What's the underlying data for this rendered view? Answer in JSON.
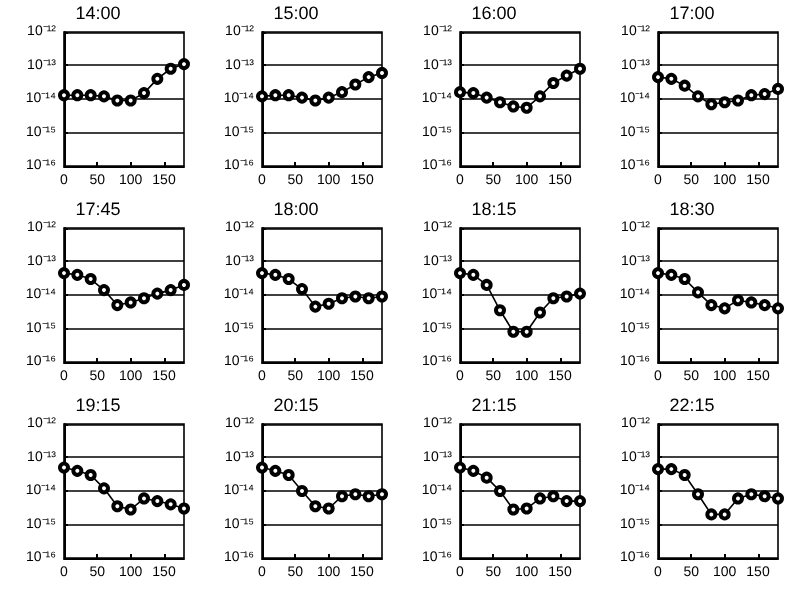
{
  "chart_data": [
    {
      "type": "line",
      "title": "14:00",
      "x": [
        0,
        20,
        40,
        60,
        80,
        100,
        120,
        140,
        160,
        180
      ],
      "series": [
        {
          "color": "#000000",
          "values": [
            1.3e-14,
            1.3e-14,
            1.3e-14,
            1.2e-14,
            9e-15,
            9e-15,
            1.5e-14,
            4e-14,
            8e-14,
            1.1e-13
          ]
        }
      ],
      "xlim": [
        0,
        180
      ],
      "xticks": [
        0,
        50,
        100,
        150
      ],
      "ylim": [
        1e-16,
        1e-12
      ],
      "yticks": [
        {
          "value": 1e-16,
          "label": "10⁻¹⁶"
        },
        {
          "value": 1e-15,
          "label": "10⁻¹⁵"
        },
        {
          "value": 1e-14,
          "label": "10⁻¹⁴"
        },
        {
          "value": 1e-13,
          "label": "10⁻¹³"
        },
        {
          "value": 1e-12,
          "label": "10⁻¹²"
        }
      ],
      "log": "y",
      "grid": "y",
      "marker": "circle"
    },
    {
      "type": "line",
      "title": "15:00",
      "x": [
        0,
        20,
        40,
        60,
        80,
        100,
        120,
        140,
        160,
        180
      ],
      "series": [
        {
          "color": "#000000",
          "values": [
            1.2e-14,
            1.3e-14,
            1.3e-14,
            1.1e-14,
            9e-15,
            1.1e-14,
            1.6e-14,
            2.7e-14,
            4.5e-14,
            6e-14
          ]
        }
      ],
      "xlim": [
        0,
        180
      ],
      "xticks": [
        0,
        50,
        100,
        150
      ],
      "ylim": [
        1e-16,
        1e-12
      ],
      "yticks": [
        {
          "value": 1e-16,
          "label": "10⁻¹⁶"
        },
        {
          "value": 1e-15,
          "label": "10⁻¹⁵"
        },
        {
          "value": 1e-14,
          "label": "10⁻¹⁴"
        },
        {
          "value": 1e-13,
          "label": "10⁻¹³"
        },
        {
          "value": 1e-12,
          "label": "10⁻¹²"
        }
      ],
      "log": "y",
      "grid": "y",
      "marker": "circle"
    },
    {
      "type": "line",
      "title": "16:00",
      "x": [
        0,
        20,
        40,
        60,
        80,
        100,
        120,
        140,
        160,
        180
      ],
      "series": [
        {
          "color": "#000000",
          "values": [
            1.6e-14,
            1.5e-14,
            1.1e-14,
            8e-15,
            6e-15,
            5.5e-15,
            1.2e-14,
            3e-14,
            5e-14,
            8e-14
          ]
        }
      ],
      "xlim": [
        0,
        180
      ],
      "xticks": [
        0,
        50,
        100,
        150
      ],
      "ylim": [
        1e-16,
        1e-12
      ],
      "yticks": [
        {
          "value": 1e-16,
          "label": "10⁻¹⁶"
        },
        {
          "value": 1e-15,
          "label": "10⁻¹⁵"
        },
        {
          "value": 1e-14,
          "label": "10⁻¹⁴"
        },
        {
          "value": 1e-13,
          "label": "10⁻¹³"
        },
        {
          "value": 1e-12,
          "label": "10⁻¹²"
        }
      ],
      "log": "y",
      "grid": "y",
      "marker": "circle"
    },
    {
      "type": "line",
      "title": "17:00",
      "x": [
        0,
        20,
        40,
        60,
        80,
        100,
        120,
        140,
        160,
        180
      ],
      "series": [
        {
          "color": "#000000",
          "values": [
            4.5e-14,
            4e-14,
            2.5e-14,
            1.2e-14,
            7e-15,
            8e-15,
            9e-15,
            1.3e-14,
            1.4e-14,
            2e-14
          ]
        }
      ],
      "xlim": [
        0,
        180
      ],
      "xticks": [
        0,
        50,
        100,
        150
      ],
      "ylim": [
        1e-16,
        1e-12
      ],
      "yticks": [
        {
          "value": 1e-16,
          "label": "10⁻¹⁶"
        },
        {
          "value": 1e-15,
          "label": "10⁻¹⁵"
        },
        {
          "value": 1e-14,
          "label": "10⁻¹⁴"
        },
        {
          "value": 1e-13,
          "label": "10⁻¹³"
        },
        {
          "value": 1e-12,
          "label": "10⁻¹²"
        }
      ],
      "log": "y",
      "grid": "y",
      "marker": "circle"
    },
    {
      "type": "line",
      "title": "17:45",
      "x": [
        0,
        20,
        40,
        60,
        80,
        100,
        120,
        140,
        160,
        180
      ],
      "series": [
        {
          "color": "#000000",
          "values": [
            4.5e-14,
            4e-14,
            3e-14,
            1.4e-14,
            5e-15,
            6e-15,
            8e-15,
            1.1e-14,
            1.4e-14,
            2e-14
          ]
        }
      ],
      "xlim": [
        0,
        180
      ],
      "xticks": [
        0,
        50,
        100,
        150
      ],
      "ylim": [
        1e-16,
        1e-12
      ],
      "yticks": [
        {
          "value": 1e-16,
          "label": "10⁻¹⁶"
        },
        {
          "value": 1e-15,
          "label": "10⁻¹⁵"
        },
        {
          "value": 1e-14,
          "label": "10⁻¹⁴"
        },
        {
          "value": 1e-13,
          "label": "10⁻¹³"
        },
        {
          "value": 1e-12,
          "label": "10⁻¹²"
        }
      ],
      "log": "y",
      "grid": "y",
      "marker": "circle"
    },
    {
      "type": "line",
      "title": "18:00",
      "x": [
        0,
        20,
        40,
        60,
        80,
        100,
        120,
        140,
        160,
        180
      ],
      "series": [
        {
          "color": "#000000",
          "values": [
            4.5e-14,
            4e-14,
            3e-14,
            1.5e-14,
            4.5e-15,
            5.5e-15,
            8e-15,
            9e-15,
            8e-15,
            9e-15
          ]
        }
      ],
      "xlim": [
        0,
        180
      ],
      "xticks": [
        0,
        50,
        100,
        150
      ],
      "ylim": [
        1e-16,
        1e-12
      ],
      "yticks": [
        {
          "value": 1e-16,
          "label": "10⁻¹⁶"
        },
        {
          "value": 1e-15,
          "label": "10⁻¹⁵"
        },
        {
          "value": 1e-14,
          "label": "10⁻¹⁴"
        },
        {
          "value": 1e-13,
          "label": "10⁻¹³"
        },
        {
          "value": 1e-12,
          "label": "10⁻¹²"
        }
      ],
      "log": "y",
      "grid": "y",
      "marker": "circle"
    },
    {
      "type": "line",
      "title": "18:15",
      "x": [
        0,
        20,
        40,
        60,
        80,
        100,
        120,
        140,
        160,
        180
      ],
      "series": [
        {
          "color": "#000000",
          "values": [
            4.5e-14,
            4e-14,
            2e-14,
            3.5e-15,
            8e-16,
            8e-16,
            3e-15,
            8e-15,
            9e-15,
            1.1e-14
          ]
        }
      ],
      "xlim": [
        0,
        180
      ],
      "xticks": [
        0,
        50,
        100,
        150
      ],
      "ylim": [
        1e-16,
        1e-12
      ],
      "yticks": [
        {
          "value": 1e-16,
          "label": "10⁻¹⁶"
        },
        {
          "value": 1e-15,
          "label": "10⁻¹⁵"
        },
        {
          "value": 1e-14,
          "label": "10⁻¹⁴"
        },
        {
          "value": 1e-13,
          "label": "10⁻¹³"
        },
        {
          "value": 1e-12,
          "label": "10⁻¹²"
        }
      ],
      "log": "y",
      "grid": "y",
      "marker": "circle"
    },
    {
      "type": "line",
      "title": "18:30",
      "x": [
        0,
        20,
        40,
        60,
        80,
        100,
        120,
        140,
        160,
        180
      ],
      "series": [
        {
          "color": "#000000",
          "values": [
            4.5e-14,
            4e-14,
            3e-14,
            1.2e-14,
            5e-15,
            4e-15,
            7e-15,
            6e-15,
            5e-15,
            4e-15
          ]
        }
      ],
      "xlim": [
        0,
        180
      ],
      "xticks": [
        0,
        50,
        100,
        150
      ],
      "ylim": [
        1e-16,
        1e-12
      ],
      "yticks": [
        {
          "value": 1e-16,
          "label": "10⁻¹⁶"
        },
        {
          "value": 1e-15,
          "label": "10⁻¹⁵"
        },
        {
          "value": 1e-14,
          "label": "10⁻¹⁴"
        },
        {
          "value": 1e-13,
          "label": "10⁻¹³"
        },
        {
          "value": 1e-12,
          "label": "10⁻¹²"
        }
      ],
      "log": "y",
      "grid": "y",
      "marker": "circle"
    },
    {
      "type": "line",
      "title": "19:15",
      "x": [
        0,
        20,
        40,
        60,
        80,
        100,
        120,
        140,
        160,
        180
      ],
      "series": [
        {
          "color": "#000000",
          "values": [
            5e-14,
            4e-14,
            3e-14,
            1.2e-14,
            3.5e-15,
            2.8e-15,
            6e-15,
            5e-15,
            4e-15,
            3e-15
          ]
        }
      ],
      "xlim": [
        0,
        180
      ],
      "xticks": [
        0,
        50,
        100,
        150
      ],
      "ylim": [
        1e-16,
        1e-12
      ],
      "yticks": [
        {
          "value": 1e-16,
          "label": "10⁻¹⁶"
        },
        {
          "value": 1e-15,
          "label": "10⁻¹⁵"
        },
        {
          "value": 1e-14,
          "label": "10⁻¹⁴"
        },
        {
          "value": 1e-13,
          "label": "10⁻¹³"
        },
        {
          "value": 1e-12,
          "label": "10⁻¹²"
        }
      ],
      "log": "y",
      "grid": "y",
      "marker": "circle"
    },
    {
      "type": "line",
      "title": "20:15",
      "x": [
        0,
        20,
        40,
        60,
        80,
        100,
        120,
        140,
        160,
        180
      ],
      "series": [
        {
          "color": "#000000",
          "values": [
            5e-14,
            4e-14,
            3e-14,
            1e-14,
            3.5e-15,
            3e-15,
            7e-15,
            8e-15,
            7e-15,
            8e-15
          ]
        }
      ],
      "xlim": [
        0,
        180
      ],
      "xticks": [
        0,
        50,
        100,
        150
      ],
      "ylim": [
        1e-16,
        1e-12
      ],
      "yticks": [
        {
          "value": 1e-16,
          "label": "10⁻¹⁶"
        },
        {
          "value": 1e-15,
          "label": "10⁻¹⁵"
        },
        {
          "value": 1e-14,
          "label": "10⁻¹⁴"
        },
        {
          "value": 1e-13,
          "label": "10⁻¹³"
        },
        {
          "value": 1e-12,
          "label": "10⁻¹²"
        }
      ],
      "log": "y",
      "grid": "y",
      "marker": "circle"
    },
    {
      "type": "line",
      "title": "21:15",
      "x": [
        0,
        20,
        40,
        60,
        80,
        100,
        120,
        140,
        160,
        180
      ],
      "series": [
        {
          "color": "#000000",
          "values": [
            5e-14,
            4e-14,
            2.5e-14,
            1e-14,
            2.8e-15,
            3e-15,
            6e-15,
            7e-15,
            5e-15,
            5e-15
          ]
        }
      ],
      "xlim": [
        0,
        180
      ],
      "xticks": [
        0,
        50,
        100,
        150
      ],
      "ylim": [
        1e-16,
        1e-12
      ],
      "yticks": [
        {
          "value": 1e-16,
          "label": "10⁻¹⁶"
        },
        {
          "value": 1e-15,
          "label": "10⁻¹⁵"
        },
        {
          "value": 1e-14,
          "label": "10⁻¹⁴"
        },
        {
          "value": 1e-13,
          "label": "10⁻¹³"
        },
        {
          "value": 1e-12,
          "label": "10⁻¹²"
        }
      ],
      "log": "y",
      "grid": "y",
      "marker": "circle"
    },
    {
      "type": "line",
      "title": "22:15",
      "x": [
        0,
        20,
        40,
        60,
        80,
        100,
        120,
        140,
        160,
        180
      ],
      "series": [
        {
          "color": "#000000",
          "values": [
            4.5e-14,
            4.5e-14,
            3e-14,
            8e-15,
            2e-15,
            2e-15,
            6e-15,
            8e-15,
            7e-15,
            6e-15
          ]
        }
      ],
      "xlim": [
        0,
        180
      ],
      "xticks": [
        0,
        50,
        100,
        150
      ],
      "ylim": [
        1e-16,
        1e-12
      ],
      "yticks": [
        {
          "value": 1e-16,
          "label": "10⁻¹⁶"
        },
        {
          "value": 1e-15,
          "label": "10⁻¹⁵"
        },
        {
          "value": 1e-14,
          "label": "10⁻¹⁴"
        },
        {
          "value": 1e-13,
          "label": "10⁻¹³"
        },
        {
          "value": 1e-12,
          "label": "10⁻¹²"
        }
      ],
      "log": "y",
      "grid": "y",
      "marker": "circle"
    }
  ]
}
